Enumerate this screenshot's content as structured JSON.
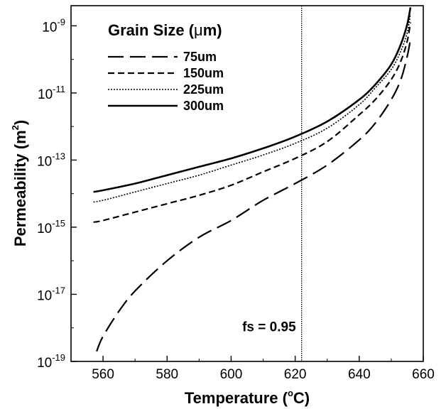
{
  "chart_data": {
    "type": "line",
    "xlabel": "Temperature (",
    "xlabel_sup": "o",
    "xlabel_end": "C)",
    "ylabel": "Permeability (m",
    "ylabel_sup": "2",
    "ylabel_end": ")",
    "xlim": [
      550,
      660
    ],
    "ylim_log10": [
      -19,
      -8.4
    ],
    "y_scale": "log",
    "x_ticks": [
      560,
      580,
      600,
      620,
      640,
      660
    ],
    "x_tick_labels": [
      "560",
      "580",
      "600",
      "620",
      "640",
      "660"
    ],
    "y_ticks": [
      {
        "base": "10",
        "exp": "-19",
        "log10": -19
      },
      {
        "base": "10",
        "exp": "-17",
        "log10": -17
      },
      {
        "base": "10",
        "exp": "-15",
        "log10": -15
      },
      {
        "base": "10",
        "exp": "-13",
        "log10": -13
      },
      {
        "base": "10",
        "exp": "-11",
        "log10": -11
      },
      {
        "base": "10",
        "exp": "-9",
        "log10": -9
      }
    ],
    "legend": {
      "title": "Grain Size (",
      "title_mu": "μ",
      "title_end": "m)",
      "position": "top-left"
    },
    "annotations": [
      {
        "text": "fs = 0.95",
        "x": 622
      }
    ],
    "vline_x": 622,
    "series": [
      {
        "name": "75um",
        "dash": "22,9",
        "x": [
          558,
          560,
          565,
          570,
          580,
          590,
          600,
          610,
          620,
          630,
          640,
          645,
          650,
          653,
          655,
          656
        ],
        "y_log10": [
          -18.7,
          -18.25,
          -17.5,
          -16.9,
          -16.0,
          -15.3,
          -14.8,
          -14.2,
          -13.7,
          -13.15,
          -12.4,
          -11.9,
          -11.2,
          -10.6,
          -9.9,
          -9.4
        ]
      },
      {
        "name": "150um",
        "dash": "9,5",
        "x": [
          557,
          560,
          570,
          580,
          590,
          600,
          610,
          620,
          630,
          640,
          645,
          650,
          653,
          655,
          656
        ],
        "y_log10": [
          -14.85,
          -14.8,
          -14.55,
          -14.3,
          -14.05,
          -13.75,
          -13.35,
          -12.95,
          -12.45,
          -11.65,
          -11.2,
          -10.6,
          -10.05,
          -9.45,
          -8.9
        ]
      },
      {
        "name": "225um",
        "dash": "2,2",
        "x": [
          557,
          560,
          570,
          580,
          590,
          600,
          610,
          620,
          630,
          640,
          645,
          650,
          653,
          655,
          656
        ],
        "y_log10": [
          -14.25,
          -14.2,
          -13.95,
          -13.7,
          -13.45,
          -13.15,
          -12.85,
          -12.5,
          -12.05,
          -11.35,
          -10.85,
          -10.3,
          -9.75,
          -9.2,
          -8.65
        ]
      },
      {
        "name": "300um",
        "dash": "",
        "x": [
          557,
          560,
          570,
          580,
          590,
          600,
          610,
          620,
          630,
          640,
          645,
          650,
          653,
          655,
          656
        ],
        "y_log10": [
          -13.95,
          -13.9,
          -13.7,
          -13.45,
          -13.2,
          -12.95,
          -12.65,
          -12.3,
          -11.85,
          -11.2,
          -10.75,
          -10.15,
          -9.55,
          -8.95,
          -8.45
        ]
      }
    ]
  }
}
